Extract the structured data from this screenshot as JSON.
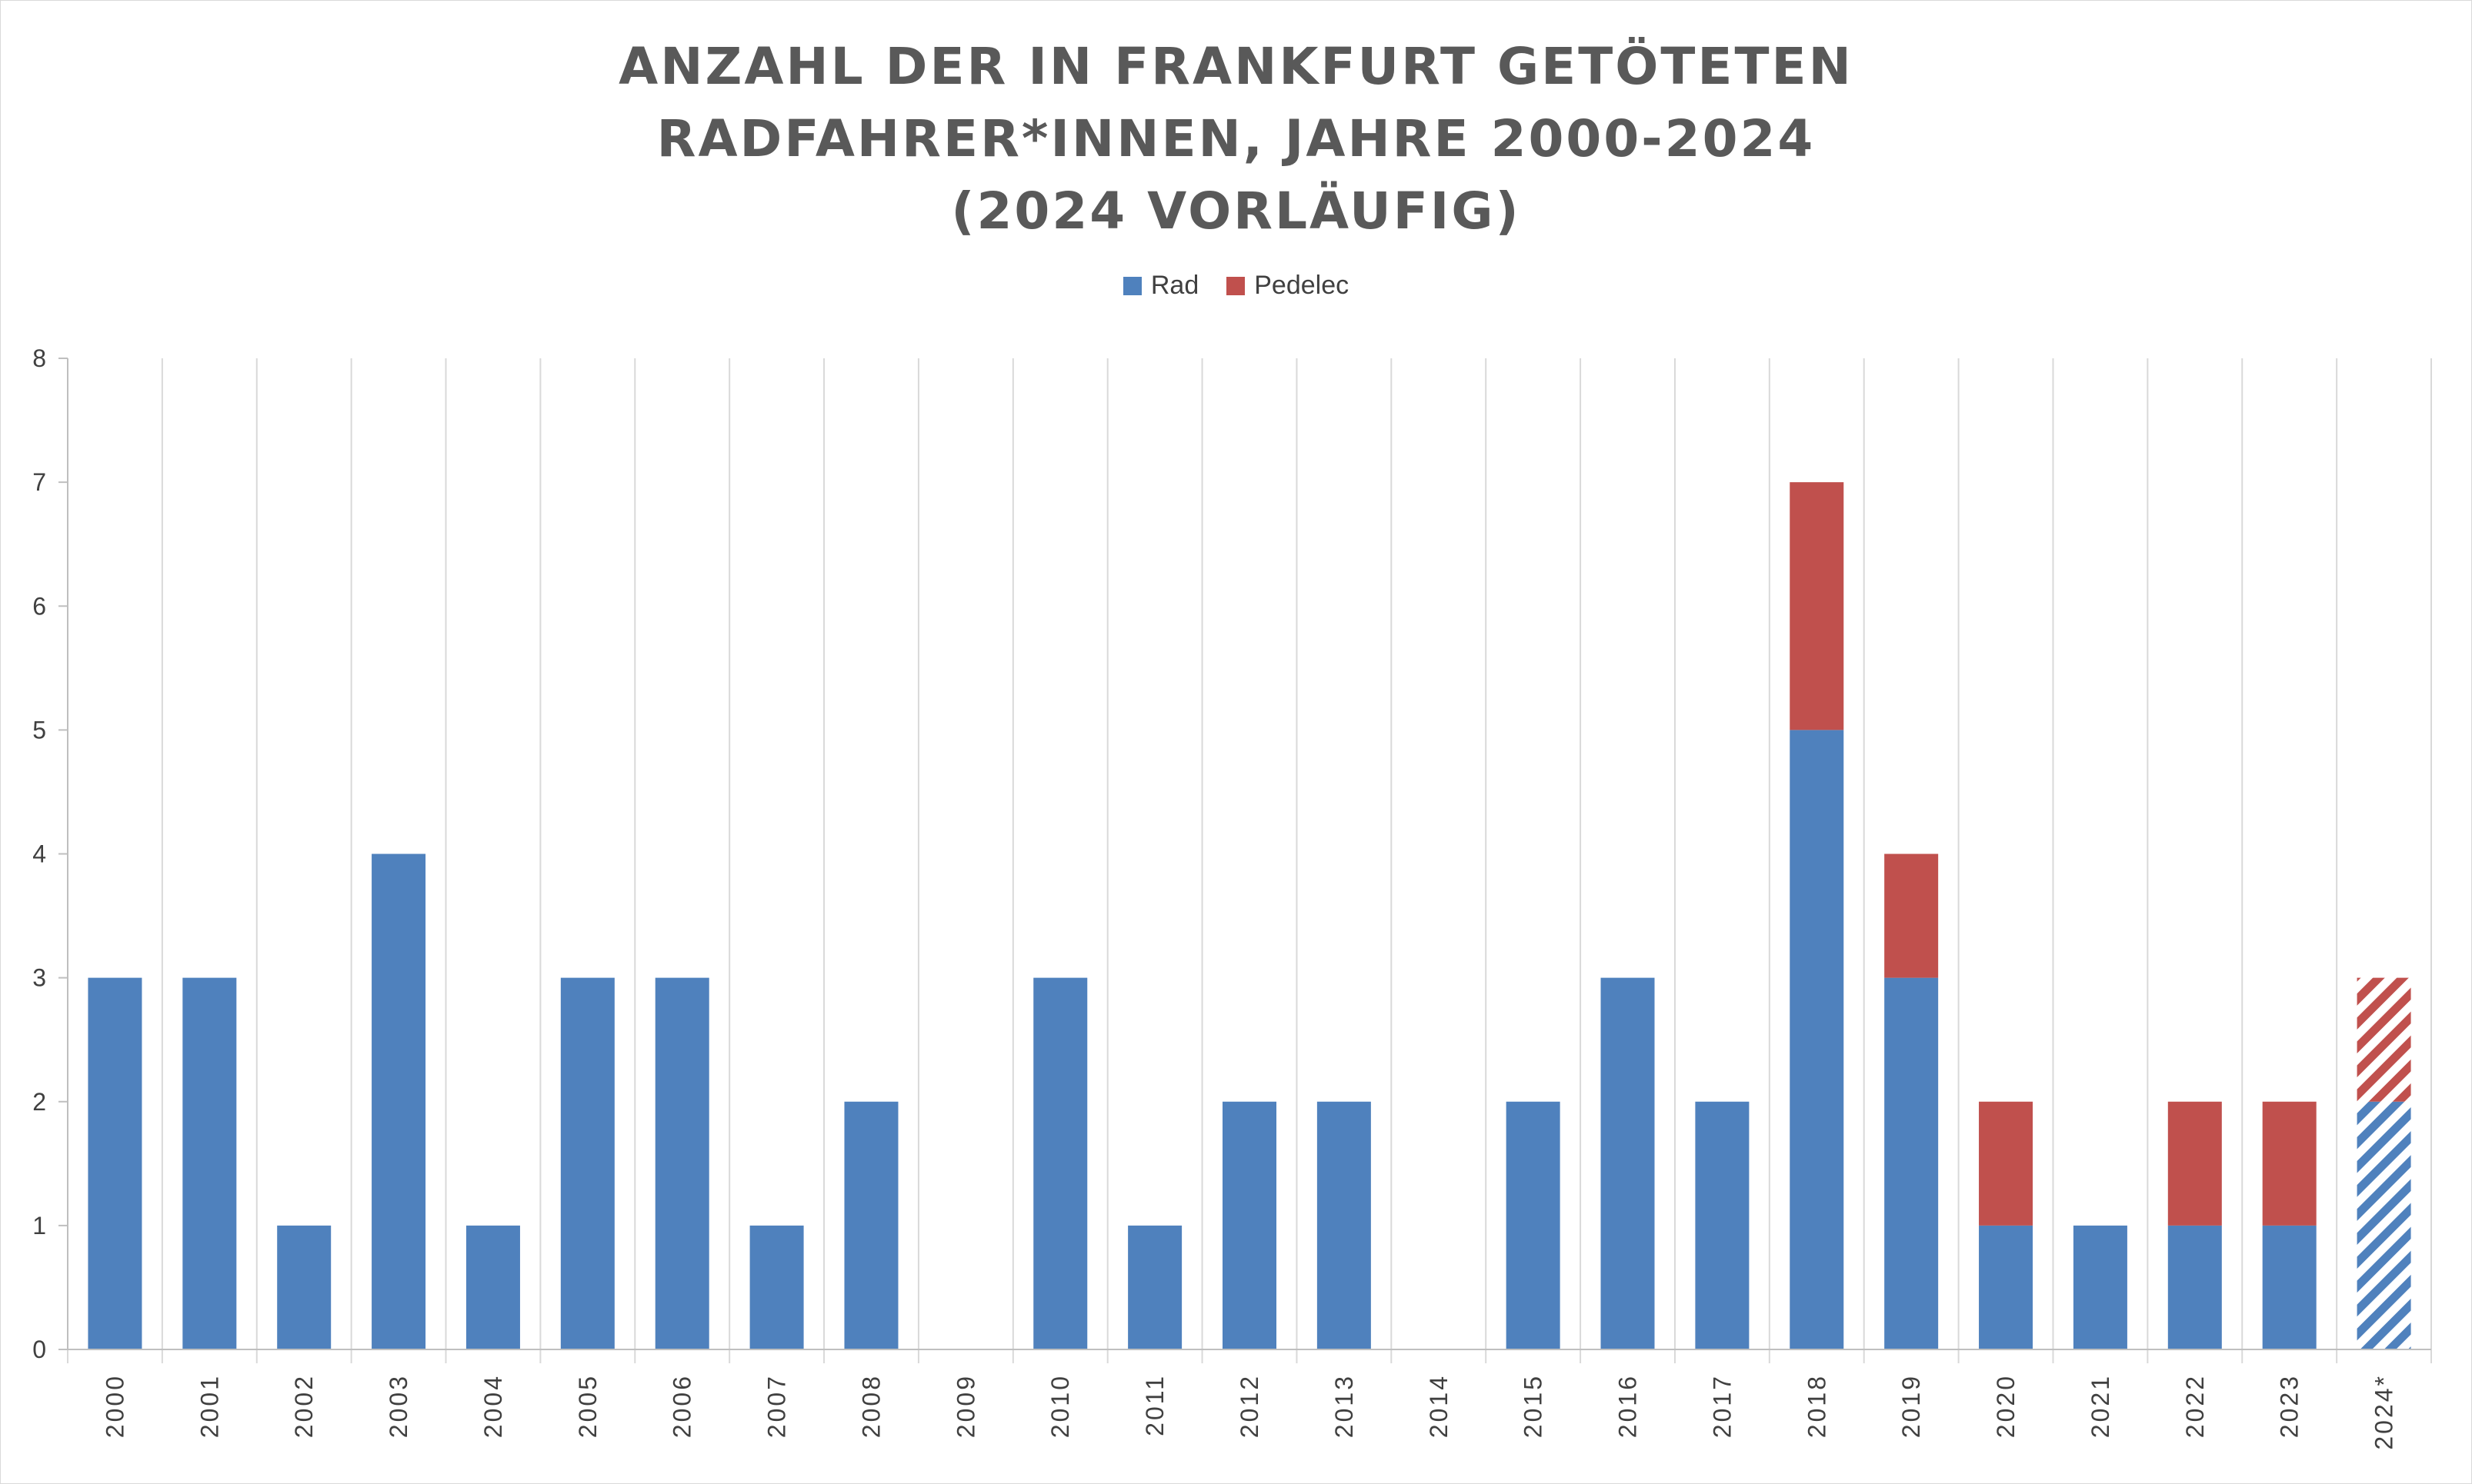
{
  "chart_data": {
    "type": "bar",
    "stacked": true,
    "title_lines": [
      "ANZAHL DER IN FRANKFURT GETÖTETEN",
      "RADFAHRER*INNEN, JAHRE 2000-2024",
      "(2024 VORLÄUFIG)"
    ],
    "categories": [
      "2000",
      "2001",
      "2002",
      "2003",
      "2004",
      "2005",
      "2006",
      "2007",
      "2008",
      "2009",
      "2010",
      "2011",
      "2012",
      "2013",
      "2014",
      "2015",
      "2016",
      "2017",
      "2018",
      "2019",
      "2020",
      "2021",
      "2022",
      "2023",
      "2024*"
    ],
    "series": [
      {
        "name": "Rad",
        "color": "#4f81bd",
        "values": [
          3,
          3,
          1,
          4,
          1,
          3,
          3,
          1,
          2,
          0,
          3,
          1,
          2,
          2,
          0,
          2,
          3,
          2,
          5,
          3,
          1,
          1,
          1,
          1,
          2
        ]
      },
      {
        "name": "Pedelec",
        "color": "#c0504d",
        "values": [
          0,
          0,
          0,
          0,
          0,
          0,
          0,
          0,
          0,
          0,
          0,
          0,
          0,
          0,
          0,
          0,
          0,
          0,
          2,
          1,
          1,
          0,
          1,
          1,
          1
        ]
      }
    ],
    "hatched_categories": [
      "2024*"
    ],
    "ylim": [
      0,
      8
    ],
    "yticks": [
      "0",
      "1",
      "2",
      "3",
      "4",
      "5",
      "6",
      "7",
      "8"
    ],
    "legend_position": "top",
    "grid": "vertical category separators"
  }
}
